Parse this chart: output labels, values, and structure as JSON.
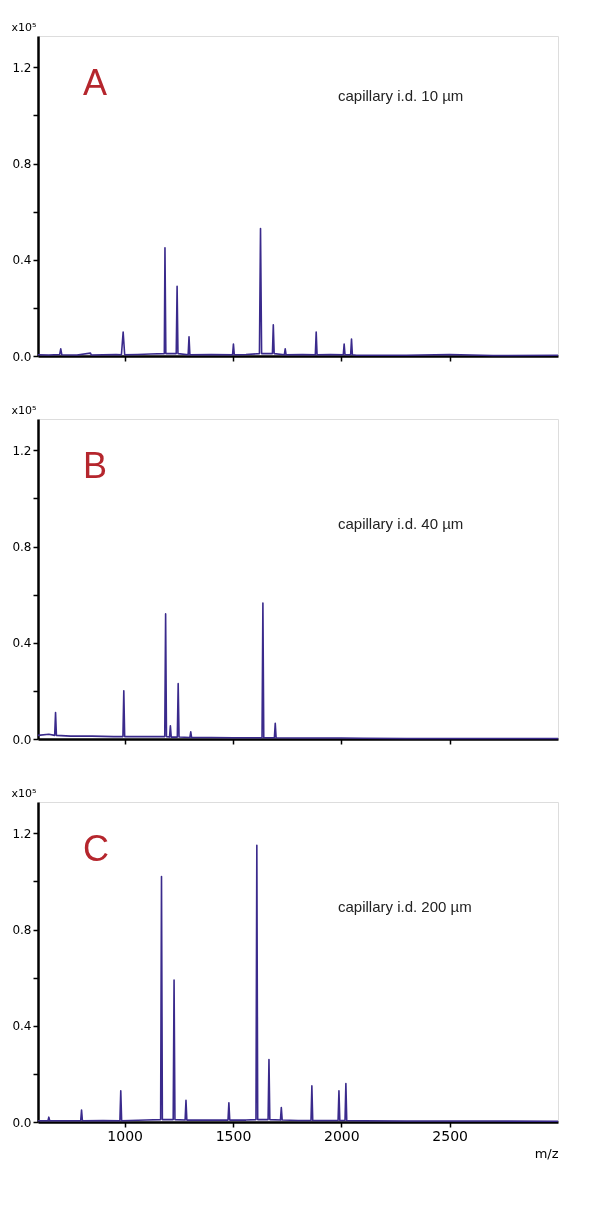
{
  "chart_data": [
    {
      "type": "line",
      "annotations": [
        "A",
        "capillary i.d. 10 µm"
      ],
      "ylabel": "x10⁵",
      "tick_labels": "y",
      "x": [
        600,
        650,
        700,
        705,
        710,
        780,
        842,
        846,
        900,
        960,
        985,
        993,
        1000,
        1060,
        1120,
        1183,
        1186,
        1190,
        1238,
        1242,
        1246,
        1293,
        1297,
        1301,
        1400,
        1498,
        1502,
        1506,
        1560,
        1622,
        1627,
        1632,
        1682,
        1686,
        1690,
        1737,
        1741,
        1745,
        1820,
        1880,
        1884,
        1888,
        1950,
        2009,
        2013,
        2017,
        2043,
        2047,
        2051,
        2070,
        2300,
        2500,
        2700,
        3000
      ],
      "series": [
        {
          "color": "#3a2a8c",
          "values": [
            0.005,
            0.004,
            0.006,
            0.03,
            0.005,
            0.004,
            0.012,
            0.004,
            0.005,
            0.006,
            0.005,
            0.1,
            0.005,
            0.006,
            0.008,
            0.01,
            0.45,
            0.01,
            0.01,
            0.29,
            0.01,
            0.005,
            0.08,
            0.005,
            0.006,
            0.005,
            0.05,
            0.005,
            0.006,
            0.01,
            0.53,
            0.01,
            0.01,
            0.13,
            0.01,
            0.005,
            0.03,
            0.005,
            0.006,
            0.005,
            0.1,
            0.005,
            0.006,
            0.005,
            0.05,
            0.005,
            0.005,
            0.07,
            0.005,
            0.003,
            0.003,
            0.006,
            0.002,
            0.003
          ]
        }
      ],
      "xlim": [
        600,
        3000
      ],
      "ylim": [
        0,
        1.33
      ],
      "xticks": [
        {
          "value": 1000,
          "label": null
        },
        {
          "value": 1500,
          "label": null
        },
        {
          "value": 2000,
          "label": null
        },
        {
          "value": 2500,
          "label": null
        }
      ],
      "yticks": [
        {
          "value": 0,
          "label": "0.0"
        },
        {
          "value": 0.2,
          "label": null
        },
        {
          "value": 0.4,
          "label": "0.4"
        },
        {
          "value": 0.6,
          "label": null
        },
        {
          "value": 0.8,
          "label": "0.8"
        },
        {
          "value": 1.0,
          "label": null
        },
        {
          "value": 1.2,
          "label": "1.2"
        }
      ]
    },
    {
      "type": "line",
      "annotations": [
        "B",
        "capillary i.d. 40 µm"
      ],
      "ylabel": "x10⁵",
      "tick_labels": "y",
      "x": [
        600,
        650,
        677,
        681,
        685,
        750,
        850,
        950,
        992,
        996,
        1000,
        1100,
        1185,
        1189,
        1193,
        1207,
        1211,
        1215,
        1243,
        1247,
        1251,
        1301,
        1305,
        1309,
        1400,
        1500,
        1600,
        1634,
        1638,
        1642,
        1691,
        1695,
        1699,
        1800,
        1900,
        2000,
        2100,
        2300,
        2600,
        3000
      ],
      "series": [
        {
          "color": "#3a2a8c",
          "values": [
            0.015,
            0.02,
            0.015,
            0.11,
            0.015,
            0.012,
            0.012,
            0.01,
            0.01,
            0.2,
            0.01,
            0.01,
            0.01,
            0.52,
            0.01,
            0.008,
            0.055,
            0.008,
            0.008,
            0.23,
            0.008,
            0.006,
            0.03,
            0.006,
            0.006,
            0.005,
            0.005,
            0.005,
            0.565,
            0.005,
            0.005,
            0.065,
            0.005,
            0.004,
            0.004,
            0.004,
            0.003,
            0.002,
            0.002,
            0.002
          ]
        }
      ],
      "xlim": [
        600,
        3000
      ],
      "ylim": [
        0,
        1.33
      ],
      "xticks": [
        {
          "value": 1000,
          "label": null
        },
        {
          "value": 1500,
          "label": null
        },
        {
          "value": 2000,
          "label": null
        },
        {
          "value": 2500,
          "label": null
        }
      ],
      "yticks": [
        {
          "value": 0,
          "label": "0.0"
        },
        {
          "value": 0.2,
          "label": null
        },
        {
          "value": 0.4,
          "label": "0.4"
        },
        {
          "value": 0.6,
          "label": null
        },
        {
          "value": 0.8,
          "label": "0.8"
        },
        {
          "value": 1.0,
          "label": null
        },
        {
          "value": 1.2,
          "label": "1.2"
        }
      ]
    },
    {
      "type": "line",
      "annotations": [
        "C",
        "capillary i.d. 200 µm"
      ],
      "ylabel": "x10⁵",
      "xlabel": "m/z",
      "x": [
        600,
        646,
        650,
        654,
        797,
        801,
        805,
        900,
        978,
        982,
        986,
        1100,
        1166,
        1170,
        1174,
        1224,
        1228,
        1232,
        1279,
        1283,
        1287,
        1400,
        1477,
        1481,
        1485,
        1560,
        1606,
        1610,
        1614,
        1662,
        1666,
        1670,
        1719,
        1723,
        1727,
        1800,
        1860,
        1864,
        1868,
        1940,
        1985,
        1989,
        1993,
        2017,
        2021,
        2025,
        2100,
        2300,
        2500,
        2700,
        3000
      ],
      "series": [
        {
          "color": "#3a2a8c",
          "values": [
            0.005,
            0.005,
            0.02,
            0.005,
            0.005,
            0.05,
            0.005,
            0.006,
            0.005,
            0.13,
            0.005,
            0.008,
            0.01,
            1.02,
            0.01,
            0.01,
            0.59,
            0.01,
            0.008,
            0.09,
            0.008,
            0.008,
            0.008,
            0.08,
            0.008,
            0.008,
            0.01,
            1.15,
            0.01,
            0.01,
            0.26,
            0.01,
            0.008,
            0.06,
            0.008,
            0.006,
            0.006,
            0.15,
            0.006,
            0.006,
            0.006,
            0.13,
            0.006,
            0.006,
            0.16,
            0.006,
            0.005,
            0.004,
            0.004,
            0.004,
            0.003
          ]
        }
      ],
      "xlim": [
        600,
        3000
      ],
      "ylim": [
        0,
        1.33
      ],
      "xticks": [
        1000,
        1500,
        2000,
        2500
      ],
      "yticks": [
        {
          "value": 0,
          "label": "0.0"
        },
        {
          "value": 0.2,
          "label": null
        },
        {
          "value": 0.4,
          "label": "0.4"
        },
        {
          "value": 0.6,
          "label": null
        },
        {
          "value": 0.8,
          "label": "0.8"
        },
        {
          "value": 1.0,
          "label": null
        },
        {
          "value": 1.2,
          "label": "1.2"
        }
      ]
    }
  ]
}
